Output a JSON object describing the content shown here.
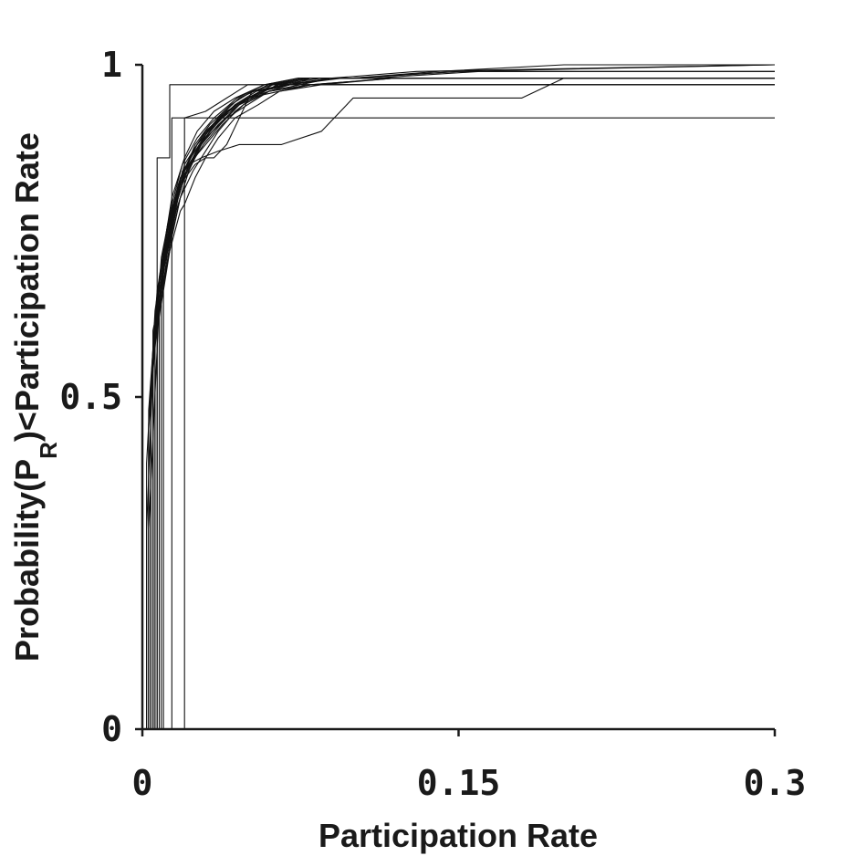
{
  "chart_data": {
    "type": "line",
    "title": "",
    "xlabel": "Participation Rate",
    "ylabel_parts": [
      "Probability(P",
      "R",
      ")<Participation Rate"
    ],
    "xlim": [
      0,
      0.3
    ],
    "ylim": [
      0,
      1
    ],
    "x_ticks": [
      0,
      0.15,
      0.3
    ],
    "x_tick_labels": [
      "0",
      "0.15",
      "0.3"
    ],
    "y_ticks": [
      0,
      0.5,
      1
    ],
    "y_tick_labels": [
      "0",
      "0.5",
      "1"
    ],
    "grid": false,
    "legend": "none",
    "line_color": "#111111",
    "series": [
      {
        "x": [
          0.002,
          0.002,
          0.006,
          0.01,
          0.014,
          0.02,
          0.026,
          0.034,
          0.044,
          0.058,
          0.075,
          0.1,
          0.14,
          0.2,
          0.3
        ],
        "y": [
          0,
          0.3,
          0.62,
          0.72,
          0.8,
          0.86,
          0.9,
          0.93,
          0.95,
          0.97,
          0.98,
          0.98,
          0.99,
          1,
          1
        ]
      },
      {
        "x": [
          0.004,
          0.004,
          0.008,
          0.012,
          0.018,
          0.024,
          0.03,
          0.04,
          0.05,
          0.065,
          0.085,
          0.11,
          0.16,
          0.3
        ],
        "y": [
          0,
          0.5,
          0.68,
          0.76,
          0.83,
          0.87,
          0.9,
          0.93,
          0.95,
          0.97,
          0.98,
          0.98,
          0.99,
          0.99
        ]
      },
      {
        "x": [
          0.003,
          0.003,
          0.007,
          0.012,
          0.016,
          0.022,
          0.03,
          0.038,
          0.048,
          0.06,
          0.08,
          0.12,
          0.3
        ],
        "y": [
          0,
          0.45,
          0.65,
          0.75,
          0.8,
          0.85,
          0.88,
          0.91,
          0.94,
          0.96,
          0.97,
          0.98,
          0.98
        ]
      },
      {
        "x": [
          0.005,
          0.005,
          0.01,
          0.015,
          0.02,
          0.025,
          0.032,
          0.042,
          0.052,
          0.068,
          0.09,
          0.13,
          0.3
        ],
        "y": [
          0,
          0.55,
          0.7,
          0.78,
          0.84,
          0.88,
          0.91,
          0.94,
          0.96,
          0.97,
          0.98,
          0.99,
          1
        ]
      },
      {
        "x": [
          0.006,
          0.006,
          0.009,
          0.014,
          0.019,
          0.026,
          0.034,
          0.045,
          0.058,
          0.074,
          0.1,
          0.15,
          0.3
        ],
        "y": [
          0,
          0.58,
          0.71,
          0.79,
          0.85,
          0.89,
          0.92,
          0.95,
          0.97,
          0.98,
          0.98,
          0.99,
          1
        ]
      },
      {
        "x": [
          0.002,
          0.002,
          0.006,
          0.011,
          0.017,
          0.023,
          0.029,
          0.036,
          0.046,
          0.056,
          0.07,
          0.09,
          0.3
        ],
        "y": [
          0,
          0.4,
          0.63,
          0.74,
          0.82,
          0.86,
          0.89,
          0.92,
          0.94,
          0.96,
          0.97,
          0.98,
          0.98
        ]
      },
      {
        "x": [
          0.008,
          0.008,
          0.012,
          0.017,
          0.022,
          0.028,
          0.036,
          0.046,
          0.06,
          0.08,
          0.12,
          0.3
        ],
        "y": [
          0,
          0.62,
          0.72,
          0.8,
          0.85,
          0.88,
          0.91,
          0.94,
          0.96,
          0.97,
          0.98,
          0.98
        ]
      },
      {
        "x": [
          0.004,
          0.004,
          0.008,
          0.013,
          0.018,
          0.024,
          0.031,
          0.04,
          0.05,
          0.062,
          0.078,
          0.1,
          0.3
        ],
        "y": [
          0,
          0.52,
          0.67,
          0.76,
          0.82,
          0.86,
          0.9,
          0.93,
          0.95,
          0.97,
          0.98,
          0.98,
          0.98
        ]
      },
      {
        "x": [
          0.003,
          0.003,
          0.007,
          0.013,
          0.02,
          0.03,
          0.04,
          0.05,
          0.06,
          0.07,
          0.08,
          0.1,
          0.15,
          0.3
        ],
        "y": [
          0,
          0.48,
          0.66,
          0.77,
          0.84,
          0.89,
          0.92,
          0.94,
          0.96,
          0.97,
          0.98,
          0.98,
          0.99,
          0.99
        ]
      },
      {
        "x": [
          0.01,
          0.01,
          0.014,
          0.018,
          0.024,
          0.03,
          0.036,
          0.044,
          0.052,
          0.064,
          0.08,
          0.3
        ],
        "y": [
          0,
          0.66,
          0.74,
          0.8,
          0.84,
          0.87,
          0.9,
          0.93,
          0.95,
          0.97,
          0.98,
          0.98
        ]
      },
      {
        "x": [
          0.005,
          0.005,
          0.01,
          0.016,
          0.022,
          0.028,
          0.034,
          0.042,
          0.05,
          0.06,
          0.075,
          0.09,
          0.11,
          0.3
        ],
        "y": [
          0,
          0.56,
          0.69,
          0.78,
          0.84,
          0.88,
          0.91,
          0.93,
          0.95,
          0.96,
          0.97,
          0.98,
          0.98,
          0.98
        ]
      },
      {
        "x": [
          0.007,
          0.007,
          0.011,
          0.016,
          0.021,
          0.027,
          0.035,
          0.044,
          0.054,
          0.07,
          0.095,
          0.3
        ],
        "y": [
          0,
          0.6,
          0.71,
          0.79,
          0.84,
          0.88,
          0.91,
          0.94,
          0.96,
          0.97,
          0.98,
          0.98
        ]
      },
      {
        "x": [
          0.004,
          0.004,
          0.009,
          0.014,
          0.02,
          0.026,
          0.032,
          0.04,
          0.05,
          0.065,
          0.085,
          0.12,
          0.3
        ],
        "y": [
          0,
          0.5,
          0.68,
          0.77,
          0.83,
          0.87,
          0.9,
          0.93,
          0.95,
          0.96,
          0.97,
          0.98,
          0.98
        ]
      },
      {
        "x": [
          0.006,
          0.006,
          0.01,
          0.015,
          0.02,
          0.028,
          0.036,
          0.046,
          0.06,
          0.078,
          0.1,
          0.3
        ],
        "y": [
          0,
          0.58,
          0.7,
          0.79,
          0.85,
          0.89,
          0.92,
          0.95,
          0.97,
          0.98,
          0.98,
          0.98
        ]
      },
      {
        "x": [
          0.003,
          0.003,
          0.008,
          0.014,
          0.02,
          0.026,
          0.034,
          0.044,
          0.056,
          0.07,
          0.09,
          0.3
        ],
        "y": [
          0,
          0.46,
          0.66,
          0.77,
          0.84,
          0.88,
          0.91,
          0.94,
          0.96,
          0.97,
          0.98,
          0.98
        ]
      },
      {
        "x": [
          0.009,
          0.009,
          0.013,
          0.018,
          0.023,
          0.029,
          0.037,
          0.046,
          0.056,
          0.07,
          0.09,
          0.3
        ],
        "y": [
          0,
          0.64,
          0.73,
          0.8,
          0.85,
          0.88,
          0.91,
          0.94,
          0.96,
          0.97,
          0.98,
          0.98
        ]
      },
      {
        "x": [
          0.003,
          0.003,
          0.008,
          0.013,
          0.018,
          0.025,
          0.03,
          0.034,
          0.04,
          0.046,
          0.052,
          0.062,
          0.085,
          0.3
        ],
        "y": [
          0,
          0.3,
          0.64,
          0.76,
          0.82,
          0.85,
          0.86,
          0.86,
          0.88,
          0.92,
          0.96,
          0.97,
          0.97,
          0.97
        ]
      },
      {
        "x": [
          0.005,
          0.005,
          0.01,
          0.014,
          0.019,
          0.022,
          0.028,
          0.036,
          0.046,
          0.066,
          0.085,
          0.1,
          0.18,
          0.2,
          0.3
        ],
        "y": [
          0,
          0.56,
          0.69,
          0.76,
          0.84,
          0.85,
          0.86,
          0.87,
          0.88,
          0.88,
          0.9,
          0.95,
          0.95,
          0.98,
          0.98
        ]
      },
      {
        "x": [
          0.005,
          0.005,
          0.013,
          0.018,
          0.02,
          0.025,
          0.03,
          0.036,
          0.044,
          0.055,
          0.065,
          0.08,
          0.12,
          0.16,
          0.3
        ],
        "y": [
          0,
          0.6,
          0.72,
          0.78,
          0.79,
          0.83,
          0.86,
          0.89,
          0.92,
          0.94,
          0.96,
          0.97,
          0.97,
          0.97,
          0.97
        ]
      },
      {
        "x": [
          0.007,
          0.007,
          0.013,
          0.013,
          0.2
        ],
        "y": [
          0,
          0.86,
          0.86,
          0.97,
          0.97
        ]
      },
      {
        "x": [
          0.014,
          0.014,
          0.3
        ],
        "y": [
          0,
          0.92,
          0.92
        ]
      },
      {
        "x": [
          0.02,
          0.02,
          0.03,
          0.04,
          0.05,
          0.3
        ],
        "y": [
          0,
          0.92,
          0.93,
          0.95,
          0.97,
          0.97
        ]
      }
    ]
  }
}
